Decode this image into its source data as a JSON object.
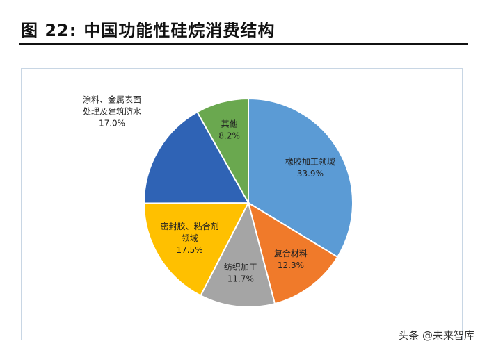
{
  "figure": {
    "number_label": "图 22:",
    "title": "中国功能性硅烷消费结构"
  },
  "watermark": {
    "text": "头条 @未来智库",
    "faint_text": "未来智库"
  },
  "colors": {
    "rubber": "#5b9bd5",
    "composite": "#f07a2a",
    "textile": "#a5a5a5",
    "sealant": "#ffc000",
    "coating": "#2f63b5",
    "other": "#6aa84f"
  },
  "chart_data": {
    "type": "pie",
    "title": "中国功能性硅烷消费结构",
    "slices": [
      {
        "label": "橡胶加工领域",
        "value": 33.9,
        "value_label": "33.9%",
        "color": "#5b9bd5"
      },
      {
        "label": "复合材料",
        "value": 12.3,
        "value_label": "12.3%",
        "color": "#f07a2a"
      },
      {
        "label": "纺织加工",
        "value": 11.7,
        "value_label": "11.7%",
        "color": "#a5a5a5"
      },
      {
        "label": "密封胶、粘合剂领域",
        "value": 17.5,
        "value_label": "17.5%",
        "color": "#ffc000"
      },
      {
        "label": "涂料、金属表面处理及建筑防水",
        "value": 17.0,
        "value_label": "17.0%",
        "color": "#2f63b5"
      },
      {
        "label": "其他",
        "value": 8.2,
        "value_label": "8.2%",
        "color": "#6aa84f"
      }
    ]
  }
}
